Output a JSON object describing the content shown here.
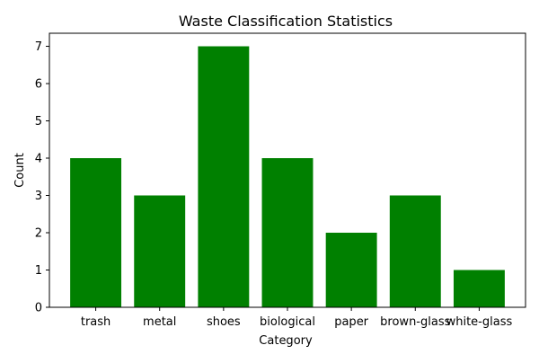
{
  "chart_data": {
    "type": "bar",
    "title": "Waste Classification Statistics",
    "xlabel": "Category",
    "ylabel": "Count",
    "categories": [
      "trash",
      "metal",
      "shoes",
      "biological",
      "paper",
      "brown-glass",
      "white-glass"
    ],
    "values": [
      4,
      3,
      7,
      4,
      2,
      3,
      1
    ],
    "ylim": [
      0,
      7.35
    ],
    "yticks": [
      0,
      1,
      2,
      3,
      4,
      5,
      6,
      7
    ],
    "bar_color": "#008000",
    "grid": false,
    "legend": "none"
  }
}
